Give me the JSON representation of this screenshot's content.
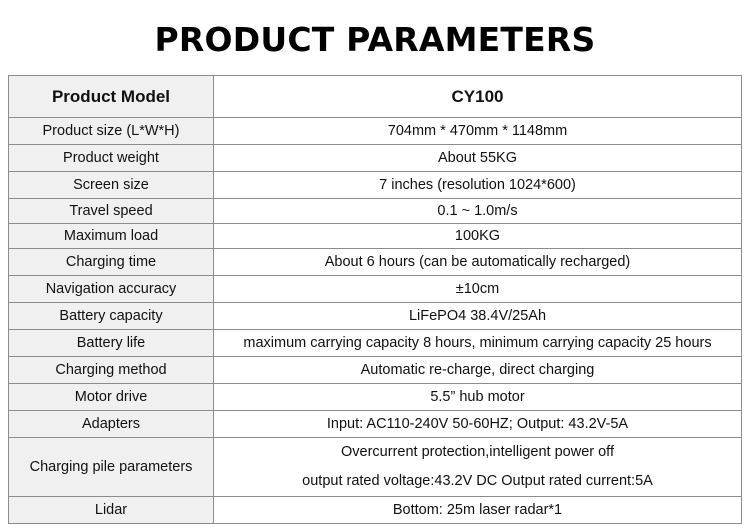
{
  "title": "PRODUCT PARAMETERS",
  "header": {
    "label": "Product Model",
    "value": "CY100"
  },
  "rows": [
    {
      "label": "Product size (L*W*H)",
      "value": "704mm * 470mm * 1148mm"
    },
    {
      "label": "Product weight",
      "value": "About 55KG"
    },
    {
      "label": "Screen size",
      "value": "7 inches (resolution 1024*600)"
    },
    {
      "label": "Travel speed",
      "value": "0.1 ~ 1.0m/s"
    },
    {
      "label": "Maximum load",
      "value": "100KG"
    },
    {
      "label": "Charging time",
      "value": "About 6 hours (can be automatically recharged)"
    },
    {
      "label": "Navigation accuracy",
      "value": "±10cm"
    },
    {
      "label": "Battery capacity",
      "value": "LiFePO4 38.4V/25Ah"
    },
    {
      "label": "Battery life",
      "value": "maximum carrying capacity 8 hours,  minimum carrying capacity 25 hours"
    },
    {
      "label": "Charging method",
      "value": "Automatic re-charge, direct charging"
    },
    {
      "label": "Motor drive",
      "value": "5.5” hub motor"
    },
    {
      "label": "Adapters",
      "value": "Input: AC110-240V 50-60HZ; Output: 43.2V-5A"
    },
    {
      "label": "Charging pile parameters",
      "value_lines": [
        "Overcurrent protection,intelligent power off",
        "output rated voltage:43.2V DC Output rated current:5A"
      ]
    },
    {
      "label": "Lidar",
      "value": "Bottom: 25m laser radar*1"
    }
  ]
}
